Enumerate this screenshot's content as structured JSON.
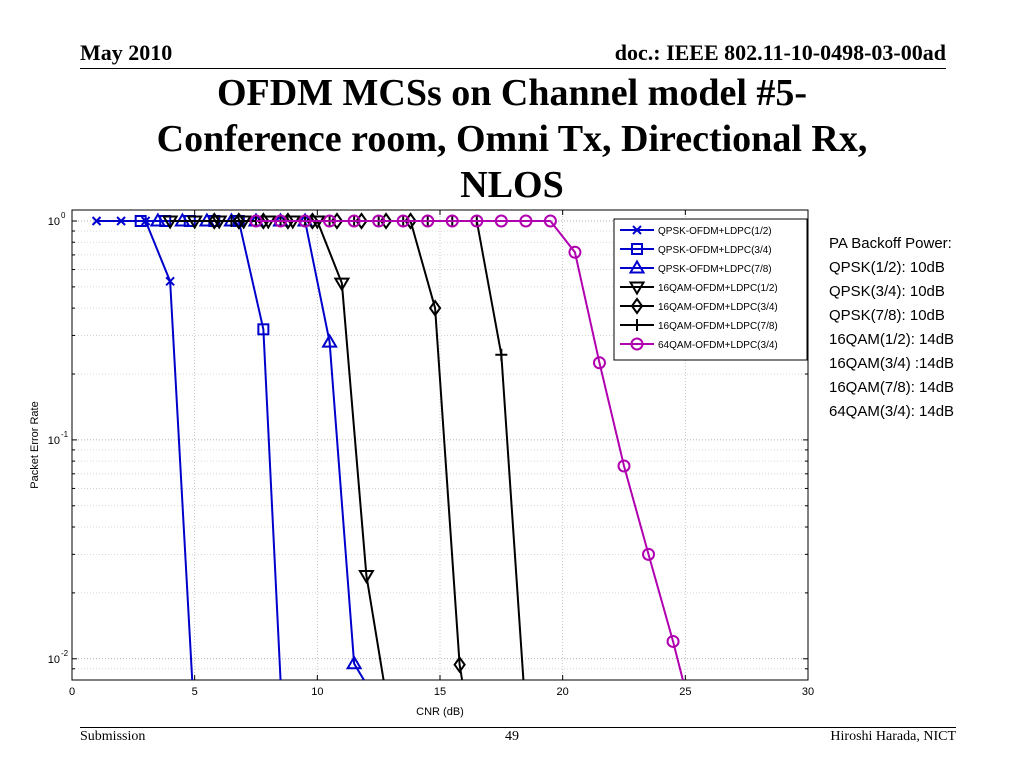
{
  "header": {
    "date": "May 2010",
    "doc": "doc.: IEEE 802.11-10-0498-03-00ad"
  },
  "slide_title": [
    "OFDM MCSs on Channel model #5-",
    "Conference room, Omni Tx, Directional Rx,",
    "NLOS"
  ],
  "chart_data": {
    "type": "line",
    "xlabel": "CNR (dB)",
    "ylabel": "Packet Error Rate",
    "xlim": [
      0,
      30
    ],
    "ylim": [
      0.008,
      1
    ],
    "yscale": "log",
    "grid": true,
    "legend_position": "top-right",
    "x_ticks": [
      "0",
      "5",
      "10",
      "15",
      "20",
      "25",
      "30"
    ],
    "y_ticks": [
      {
        "base": "10",
        "exp": "0"
      },
      {
        "base": "10",
        "exp": "-1"
      },
      {
        "base": "10",
        "exp": "-2"
      }
    ],
    "series": [
      {
        "name": "QPSK-OFDM+LDPC(1/2)",
        "color": "#0000cc",
        "marker": "x",
        "x": [
          1,
          2,
          3,
          4,
          4.9
        ],
        "y": [
          1,
          1,
          1,
          0.53,
          0.008
        ]
      },
      {
        "name": "QPSK-OFDM+LDPC(3/4)",
        "color": "#0000cc",
        "marker": "square",
        "x": [
          2.8,
          3.8,
          4.8,
          5.8,
          6.8,
          7.8,
          8.5
        ],
        "y": [
          1,
          1,
          1,
          1,
          1,
          0.32,
          0.008
        ]
      },
      {
        "name": "QPSK-OFDM+LDPC(7/8)",
        "color": "#0000cc",
        "marker": "triangle-up",
        "x": [
          3.5,
          4.5,
          5.5,
          6.5,
          7.5,
          8.5,
          9.5,
          10.5,
          11.5,
          11.9
        ],
        "y": [
          1,
          1,
          1,
          1,
          1,
          1,
          1,
          0.28,
          0.0095,
          0.008
        ]
      },
      {
        "name": "16QAM-OFDM+LDPC(1/2)",
        "color": "#000000",
        "marker": "triangle-down",
        "x": [
          4,
          5,
          6,
          7,
          8,
          9,
          10,
          11,
          12,
          12.7
        ],
        "y": [
          1,
          1,
          1,
          1,
          1,
          1,
          1,
          0.52,
          0.024,
          0.008
        ]
      },
      {
        "name": "16QAM-OFDM+LDPC(3/4)",
        "color": "#000000",
        "marker": "diamond",
        "x": [
          5.8,
          6.8,
          7.8,
          8.8,
          9.8,
          10.8,
          11.8,
          12.8,
          13.8,
          14.8,
          15.8,
          15.9
        ],
        "y": [
          1,
          1,
          1,
          1,
          1,
          1,
          1,
          1,
          1,
          0.4,
          0.0094,
          0.008
        ]
      },
      {
        "name": "16QAM-OFDM+LDPC(7/8)",
        "color": "#000000",
        "marker": "plus",
        "x": [
          6.5,
          7.5,
          8.5,
          9.5,
          10.5,
          11.5,
          12.5,
          13.5,
          14.5,
          15.5,
          16.5,
          17.5,
          18.4
        ],
        "y": [
          1,
          1,
          1,
          1,
          1,
          1,
          1,
          1,
          1,
          1,
          1,
          0.245,
          0.008
        ]
      },
      {
        "name": "64QAM-OFDM+LDPC(3/4)",
        "color": "#b000b0",
        "marker": "circle",
        "x": [
          7.5,
          8.5,
          9.5,
          10.5,
          11.5,
          12.5,
          13.5,
          14.5,
          15.5,
          16.5,
          17.5,
          18.5,
          19.5,
          20.5,
          21.5,
          22.5,
          23.5,
          24.5,
          24.9
        ],
        "y": [
          1,
          1,
          1,
          1,
          1,
          1,
          1,
          1,
          1,
          1,
          1,
          1,
          1,
          0.72,
          0.225,
          0.076,
          0.03,
          0.012,
          0.008
        ]
      }
    ]
  },
  "side_note": {
    "lines": [
      "PA Backoff Power:",
      "QPSK(1/2): 10dB",
      "QPSK(3/4): 10dB",
      "QPSK(7/8): 10dB",
      "16QAM(1/2): 14dB",
      "16QAM(3/4) :14dB",
      "16QAM(7/8): 14dB",
      "64QAM(3/4): 14dB"
    ]
  },
  "footer": {
    "left": "Submission",
    "page": "49",
    "author": "Hiroshi Harada, NICT"
  }
}
